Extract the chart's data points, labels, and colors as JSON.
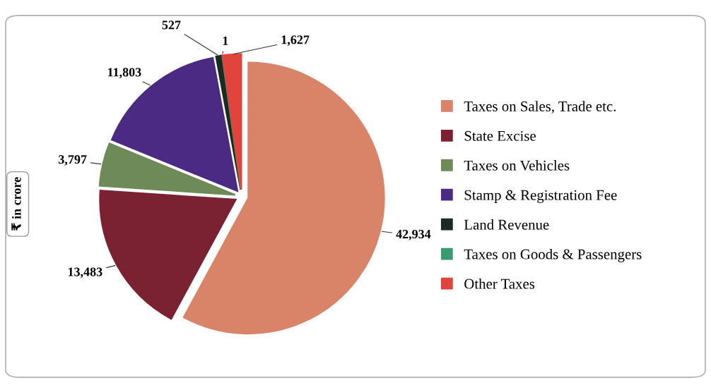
{
  "chart_data": {
    "type": "pie",
    "ylabel": "₹ in crore",
    "categories": [
      "Taxes on Sales, Trade etc.",
      "State Excise",
      "Taxes on Vehicles",
      "Stamp & Registration Fee",
      "Land Revenue",
      "Taxes on Goods & Passengers",
      "Other Taxes"
    ],
    "values": [
      42934,
      13483,
      3797,
      11803,
      527,
      1,
      1627
    ],
    "value_labels": [
      "42,934",
      "13,483",
      "3,797",
      "11,803",
      "527",
      "1",
      "1,627"
    ],
    "colors": [
      "#d98468",
      "#7a2232",
      "#6e8a58",
      "#4b2a84",
      "#1b2a22",
      "#3a9a72",
      "#e0443c"
    ],
    "legend": "right"
  }
}
